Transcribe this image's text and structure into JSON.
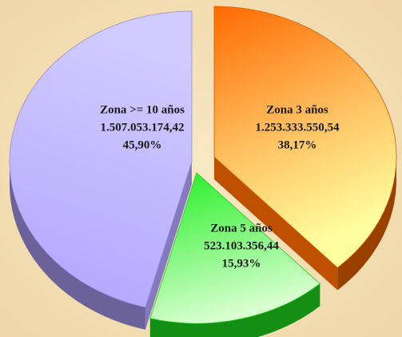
{
  "chart_data": {
    "type": "pie",
    "categories": [
      "Zona 3 años",
      "Zona 5 años",
      "Zona >= 10 años"
    ],
    "values": [
      1253333550.54,
      523103356.44,
      1507053174.42
    ],
    "value_labels": [
      "1.253.333.550,54",
      "523.103.356,44",
      "1.507.053.174,42"
    ],
    "percentages": [
      38.17,
      15.93,
      45.9
    ],
    "percentage_labels": [
      "38,17%",
      "15,93%",
      "45,90%"
    ],
    "colors": [
      "#ff6a00",
      "#22ee22",
      "#b3a3ff"
    ]
  }
}
